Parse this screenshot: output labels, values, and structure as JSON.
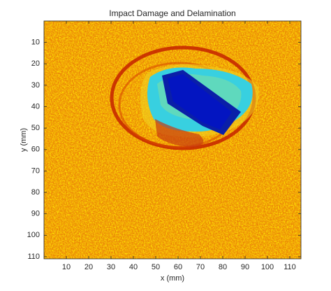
{
  "chart_data": {
    "type": "heatmap",
    "title": "Impact Damage and Delamination",
    "xlabel": "x (mm)",
    "ylabel": "y (mm)",
    "xlim": [
      0,
      115
    ],
    "ylim": [
      0,
      111
    ],
    "y_reversed": true,
    "colormap": "jet",
    "xticks": [
      10,
      20,
      30,
      40,
      50,
      60,
      70,
      80,
      90,
      100,
      110
    ],
    "yticks": [
      10,
      20,
      30,
      40,
      50,
      60,
      70,
      80,
      90,
      100,
      110
    ]
  }
}
